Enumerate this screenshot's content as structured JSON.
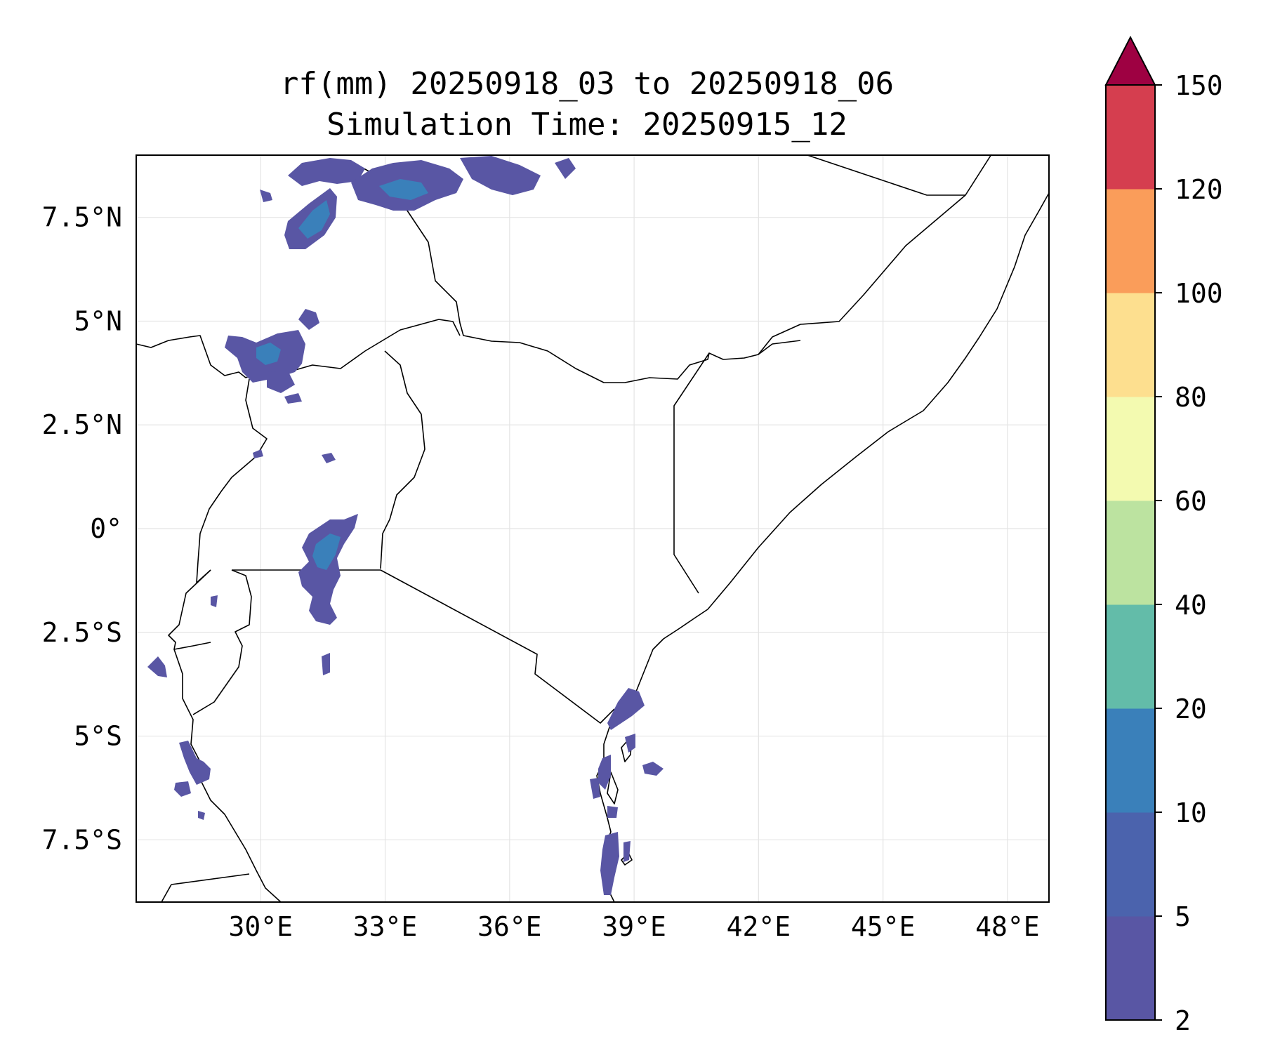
{
  "title": {
    "line1": "rf(mm) 20250918_03 to 20250918_06",
    "line2": "Simulation Time: 20250915_12"
  },
  "map": {
    "lon_range": [
      27,
      49
    ],
    "lat_range": [
      -9,
      9
    ],
    "lon_ticks": [
      30,
      33,
      36,
      39,
      42,
      45,
      48
    ],
    "lat_ticks": [
      7.5,
      5,
      2.5,
      0,
      -2.5,
      -5,
      -7.5
    ],
    "lon_tick_labels": [
      "30°E",
      "33°E",
      "36°E",
      "39°E",
      "42°E",
      "45°E",
      "48°E"
    ],
    "lat_tick_labels": [
      "7.5°N",
      "5°N",
      "2.5°N",
      "0°",
      "2.5°S",
      "5°S",
      "7.5°S"
    ],
    "grid": true,
    "coastline_color": "#000000"
  },
  "colorbar": {
    "levels": [
      2,
      5,
      10,
      20,
      40,
      60,
      80,
      100,
      120,
      150
    ],
    "tick_labels": [
      "2",
      "5",
      "10",
      "20",
      "40",
      "60",
      "80",
      "100",
      "120",
      "150"
    ],
    "colors": [
      "#5956a4",
      "#4b63ad",
      "#3a80ba",
      "#63bca9",
      "#bce3a0",
      "#f3fab0",
      "#fddf8f",
      "#fa9d5a",
      "#d53e4f"
    ],
    "extend_color": "#9e0142",
    "extend": "max"
  }
}
